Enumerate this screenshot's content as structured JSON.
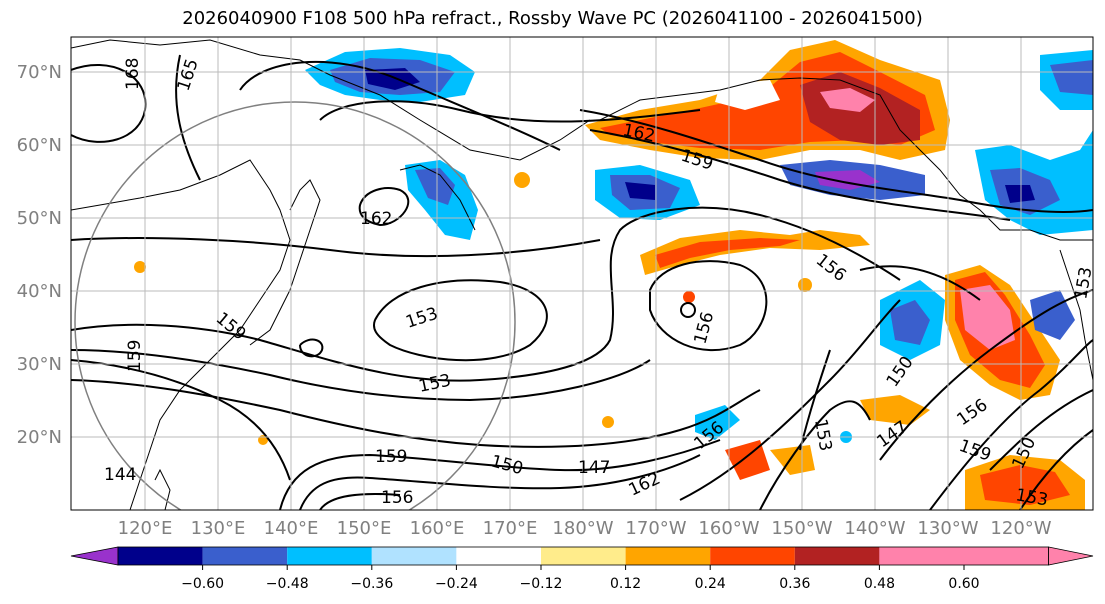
{
  "title": "2026040900 F108 500 hPa refract., Rossby Wave PC (2026041100 - 2026041500)",
  "lat_labels": [
    "70°N",
    "60°N",
    "50°N",
    "40°N",
    "30°N",
    "20°N"
  ],
  "lon_labels": [
    "120°E",
    "130°E",
    "140°E",
    "150°E",
    "160°E",
    "170°E",
    "180°W",
    "170°W",
    "160°W",
    "150°W",
    "140°W",
    "130°W",
    "120°W"
  ],
  "colorbar": {
    "colors": [
      "#9932cc",
      "#00008b",
      "#3a5fcd",
      "#00bfff",
      "#b0e2ff",
      "#ffffff",
      "#ffec8b",
      "#ffa500",
      "#ff4500",
      "#b22222",
      "#ff82ab"
    ],
    "labels": [
      "−0.60",
      "−0.48",
      "−0.36",
      "−0.24",
      "−0.12",
      "0.12",
      "0.24",
      "0.36",
      "0.48",
      "0.60"
    ]
  },
  "contour_labels": [
    "168",
    "165",
    "162",
    "159",
    "162",
    "153",
    "156",
    "156",
    "159",
    "153",
    "159",
    "150",
    "147",
    "162",
    "156",
    "153",
    "150",
    "147",
    "156",
    "159",
    "150",
    "153",
    "144",
    "159",
    "156",
    "153"
  ]
}
